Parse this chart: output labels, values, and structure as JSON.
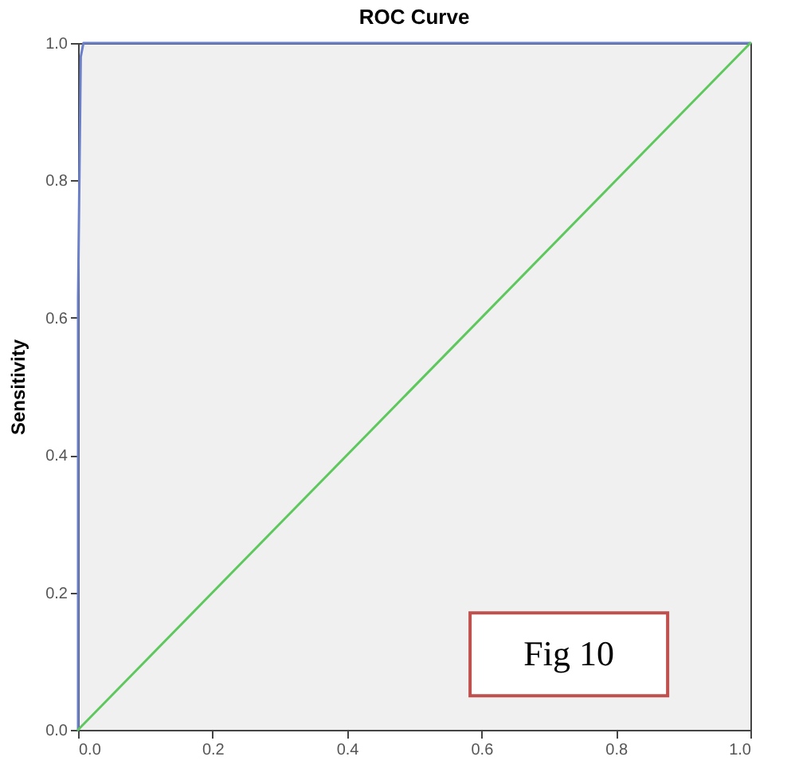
{
  "chart_data": {
    "type": "line",
    "title": "ROC Curve",
    "ylabel": "Sensitivity",
    "xlim": [
      0,
      1
    ],
    "ylim": [
      0,
      1
    ],
    "xticks": [
      {
        "value": 0,
        "label": "0.0"
      },
      0.2,
      0.4,
      0.6,
      0.8,
      {
        "value": 1,
        "label": "1.0"
      }
    ],
    "yticks": [
      {
        "value": 0,
        "label": "0.0"
      },
      0.2,
      0.4,
      0.6,
      0.8,
      {
        "value": 1,
        "label": "1.0"
      }
    ],
    "grid": false,
    "line_style": "solid",
    "series": [
      {
        "color": "#6b80c8",
        "x": [
          0,
          0,
          0.004,
          0.008,
          1
        ],
        "values": [
          0,
          0.63,
          0.98,
          1,
          1
        ]
      },
      {
        "color": "#5ec85e",
        "x": [
          0,
          1
        ],
        "values": [
          0,
          1
        ]
      }
    ],
    "annotations": [
      "Fig 10"
    ]
  }
}
